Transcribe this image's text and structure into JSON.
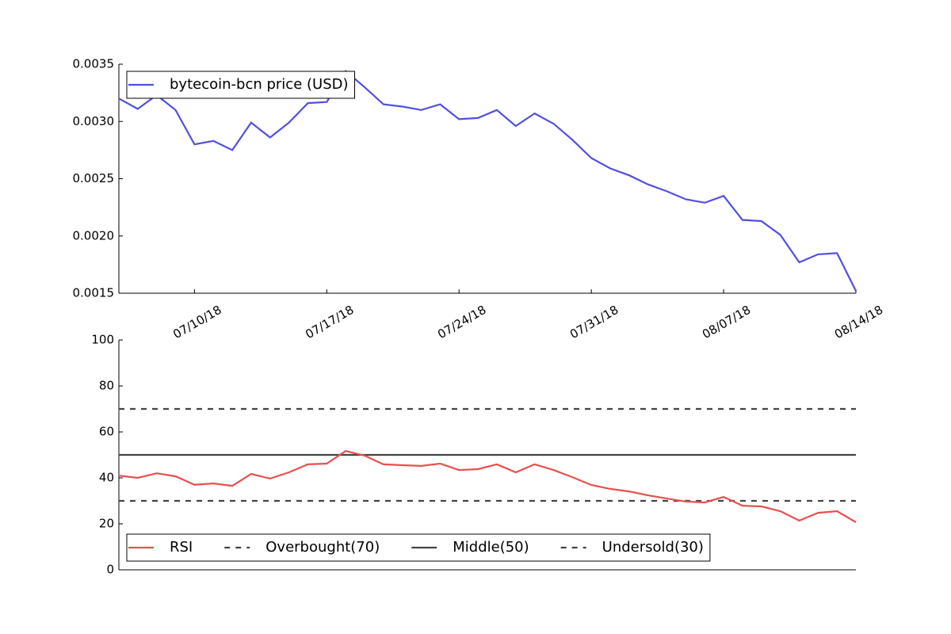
{
  "chart_data": [
    {
      "type": "line",
      "x": [
        "2018-07-06",
        "2018-07-07",
        "2018-07-08",
        "2018-07-09",
        "2018-07-10",
        "2018-07-11",
        "2018-07-12",
        "2018-07-13",
        "2018-07-14",
        "2018-07-15",
        "2018-07-16",
        "2018-07-17",
        "2018-07-18",
        "2018-07-19",
        "2018-07-20",
        "2018-07-21",
        "2018-07-22",
        "2018-07-23",
        "2018-07-24",
        "2018-07-25",
        "2018-07-26",
        "2018-07-27",
        "2018-07-28",
        "2018-07-29",
        "2018-07-30",
        "2018-07-31",
        "2018-08-01",
        "2018-08-02",
        "2018-08-03",
        "2018-08-04",
        "2018-08-05",
        "2018-08-06",
        "2018-08-07",
        "2018-08-08",
        "2018-08-09",
        "2018-08-10",
        "2018-08-11",
        "2018-08-12",
        "2018-08-13",
        "2018-08-14"
      ],
      "series": [
        {
          "name": "bytecoin-bcn price (USD)",
          "color": "#5050e0",
          "values": [
            0.0032,
            0.00311,
            0.00323,
            0.0031,
            0.0028,
            0.00283,
            0.00275,
            0.00299,
            0.00286,
            0.00299,
            0.00316,
            0.00317,
            0.00344,
            0.0033,
            0.00315,
            0.00313,
            0.0031,
            0.00315,
            0.00302,
            0.00303,
            0.0031,
            0.00296,
            0.00307,
            0.00298,
            0.00284,
            0.00268,
            0.00259,
            0.00253,
            0.00245,
            0.00239,
            0.00232,
            0.00229,
            0.00235,
            0.00214,
            0.00213,
            0.00201,
            0.00177,
            0.00184,
            0.00185,
            0.00152
          ]
        }
      ],
      "xlim": [
        "2018-07-06",
        "2018-08-14"
      ],
      "xticks": [
        {
          "value": "2018-07-10",
          "label": "07/10/18"
        },
        {
          "value": "2018-07-17",
          "label": "07/17/18"
        },
        {
          "value": "2018-07-24",
          "label": "07/24/18"
        },
        {
          "value": "2018-07-31",
          "label": "07/31/18"
        },
        {
          "value": "2018-08-07",
          "label": "08/07/18"
        },
        {
          "value": "2018-08-14",
          "label": "08/14/18"
        }
      ],
      "ylim": [
        0.0015,
        0.0035
      ],
      "yticks": [
        0.0015,
        {
          "value": 0.002,
          "label": "0.0020"
        },
        0.0025,
        {
          "value": 0.003,
          "label": "0.0030"
        },
        0.0035
      ],
      "legend": "upper left"
    },
    {
      "type": "line",
      "x": [
        "2018-07-06",
        "2018-07-07",
        "2018-07-08",
        "2018-07-09",
        "2018-07-10",
        "2018-07-11",
        "2018-07-12",
        "2018-07-13",
        "2018-07-14",
        "2018-07-15",
        "2018-07-16",
        "2018-07-17",
        "2018-07-18",
        "2018-07-19",
        "2018-07-20",
        "2018-07-21",
        "2018-07-22",
        "2018-07-23",
        "2018-07-24",
        "2018-07-25",
        "2018-07-26",
        "2018-07-27",
        "2018-07-28",
        "2018-07-29",
        "2018-07-30",
        "2018-07-31",
        "2018-08-01",
        "2018-08-02",
        "2018-08-03",
        "2018-08-04",
        "2018-08-05",
        "2018-08-06",
        "2018-08-07",
        "2018-08-08",
        "2018-08-09",
        "2018-08-10",
        "2018-08-11",
        "2018-08-12",
        "2018-08-13",
        "2018-08-14"
      ],
      "series": [
        {
          "name": "RSI",
          "color": "#e85050",
          "values": [
            41,
            40,
            42,
            40.7,
            37,
            37.6,
            36.5,
            41.7,
            39.7,
            42.4,
            45.9,
            46.2,
            51.7,
            49.7,
            45.9,
            45.5,
            45.2,
            46.2,
            43.4,
            43.8,
            45.9,
            42.4,
            45.9,
            43.4,
            40.3,
            36.9,
            35.2,
            34.1,
            32.4,
            31,
            29.7,
            29.3,
            31.7,
            27.9,
            27.6,
            25.5,
            21.4,
            24.8,
            25.5,
            20.7
          ]
        }
      ],
      "hlines": [
        {
          "name": "Overbought(70)",
          "value": 70,
          "color": "#444444",
          "style": "dashed"
        },
        {
          "name": "Middle(50)",
          "value": 50,
          "color": "#444444",
          "style": "solid"
        },
        {
          "name": "Undersold(30)",
          "value": 30,
          "color": "#444444",
          "style": "dashed"
        }
      ],
      "xlim": [
        "2018-07-06",
        "2018-08-14"
      ],
      "ylim": [
        0,
        100
      ],
      "yticks": [
        0,
        20,
        40,
        60,
        80,
        100
      ],
      "legend": "lower left"
    }
  ]
}
